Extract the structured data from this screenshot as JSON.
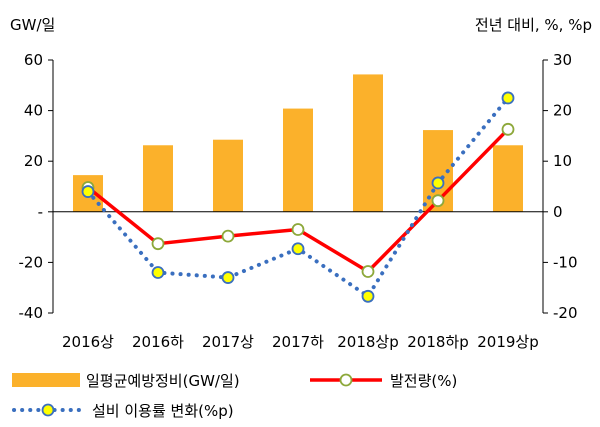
{
  "chart_data": {
    "type": "bar",
    "categories": [
      "2016상",
      "2016하",
      "2017상",
      "2017하",
      "2018상p",
      "2018하p",
      "2019상p"
    ],
    "left_axis": {
      "unit_label": "GW/일",
      "ylim": [
        -40,
        60
      ],
      "ticks": [
        "-40",
        "-20",
        "-",
        "20",
        "40",
        "60"
      ],
      "tick_values": [
        -40,
        -20,
        0,
        20,
        40,
        60
      ]
    },
    "right_axis": {
      "unit_label": "전년 대비, %, %p",
      "ylim": [
        -20,
        30
      ],
      "ticks": [
        "-20",
        "-10",
        "0",
        "10",
        "20",
        "30"
      ],
      "tick_values": [
        -20,
        -10,
        0,
        10,
        20,
        30
      ]
    },
    "series": [
      {
        "name": "일평균예방정비(GW/일)",
        "type": "bar",
        "axis": "left",
        "color": "#FBB12B",
        "values": [
          14.5,
          26.3,
          28.5,
          40.8,
          54.3,
          32.3,
          26.3
        ]
      },
      {
        "name": "발전량(%)",
        "type": "line",
        "axis": "right",
        "color": "#FF0000",
        "marker_fill": "#FFFFFF",
        "marker_stroke": "#8DA83A",
        "values": [
          4.8,
          -6.3,
          -4.8,
          -3.5,
          -11.8,
          2.2,
          16.3
        ]
      },
      {
        "name": "설비 이용률 변화(%p)",
        "type": "line-dotted",
        "axis": "right",
        "color": "#3A6FBF",
        "marker_fill": "#FFFF00",
        "marker_stroke": "#3A6FBF",
        "values": [
          4.0,
          -12.0,
          -13.0,
          -7.3,
          -16.7,
          5.7,
          22.5
        ]
      }
    ],
    "grid": false,
    "legend_position": "bottom"
  }
}
